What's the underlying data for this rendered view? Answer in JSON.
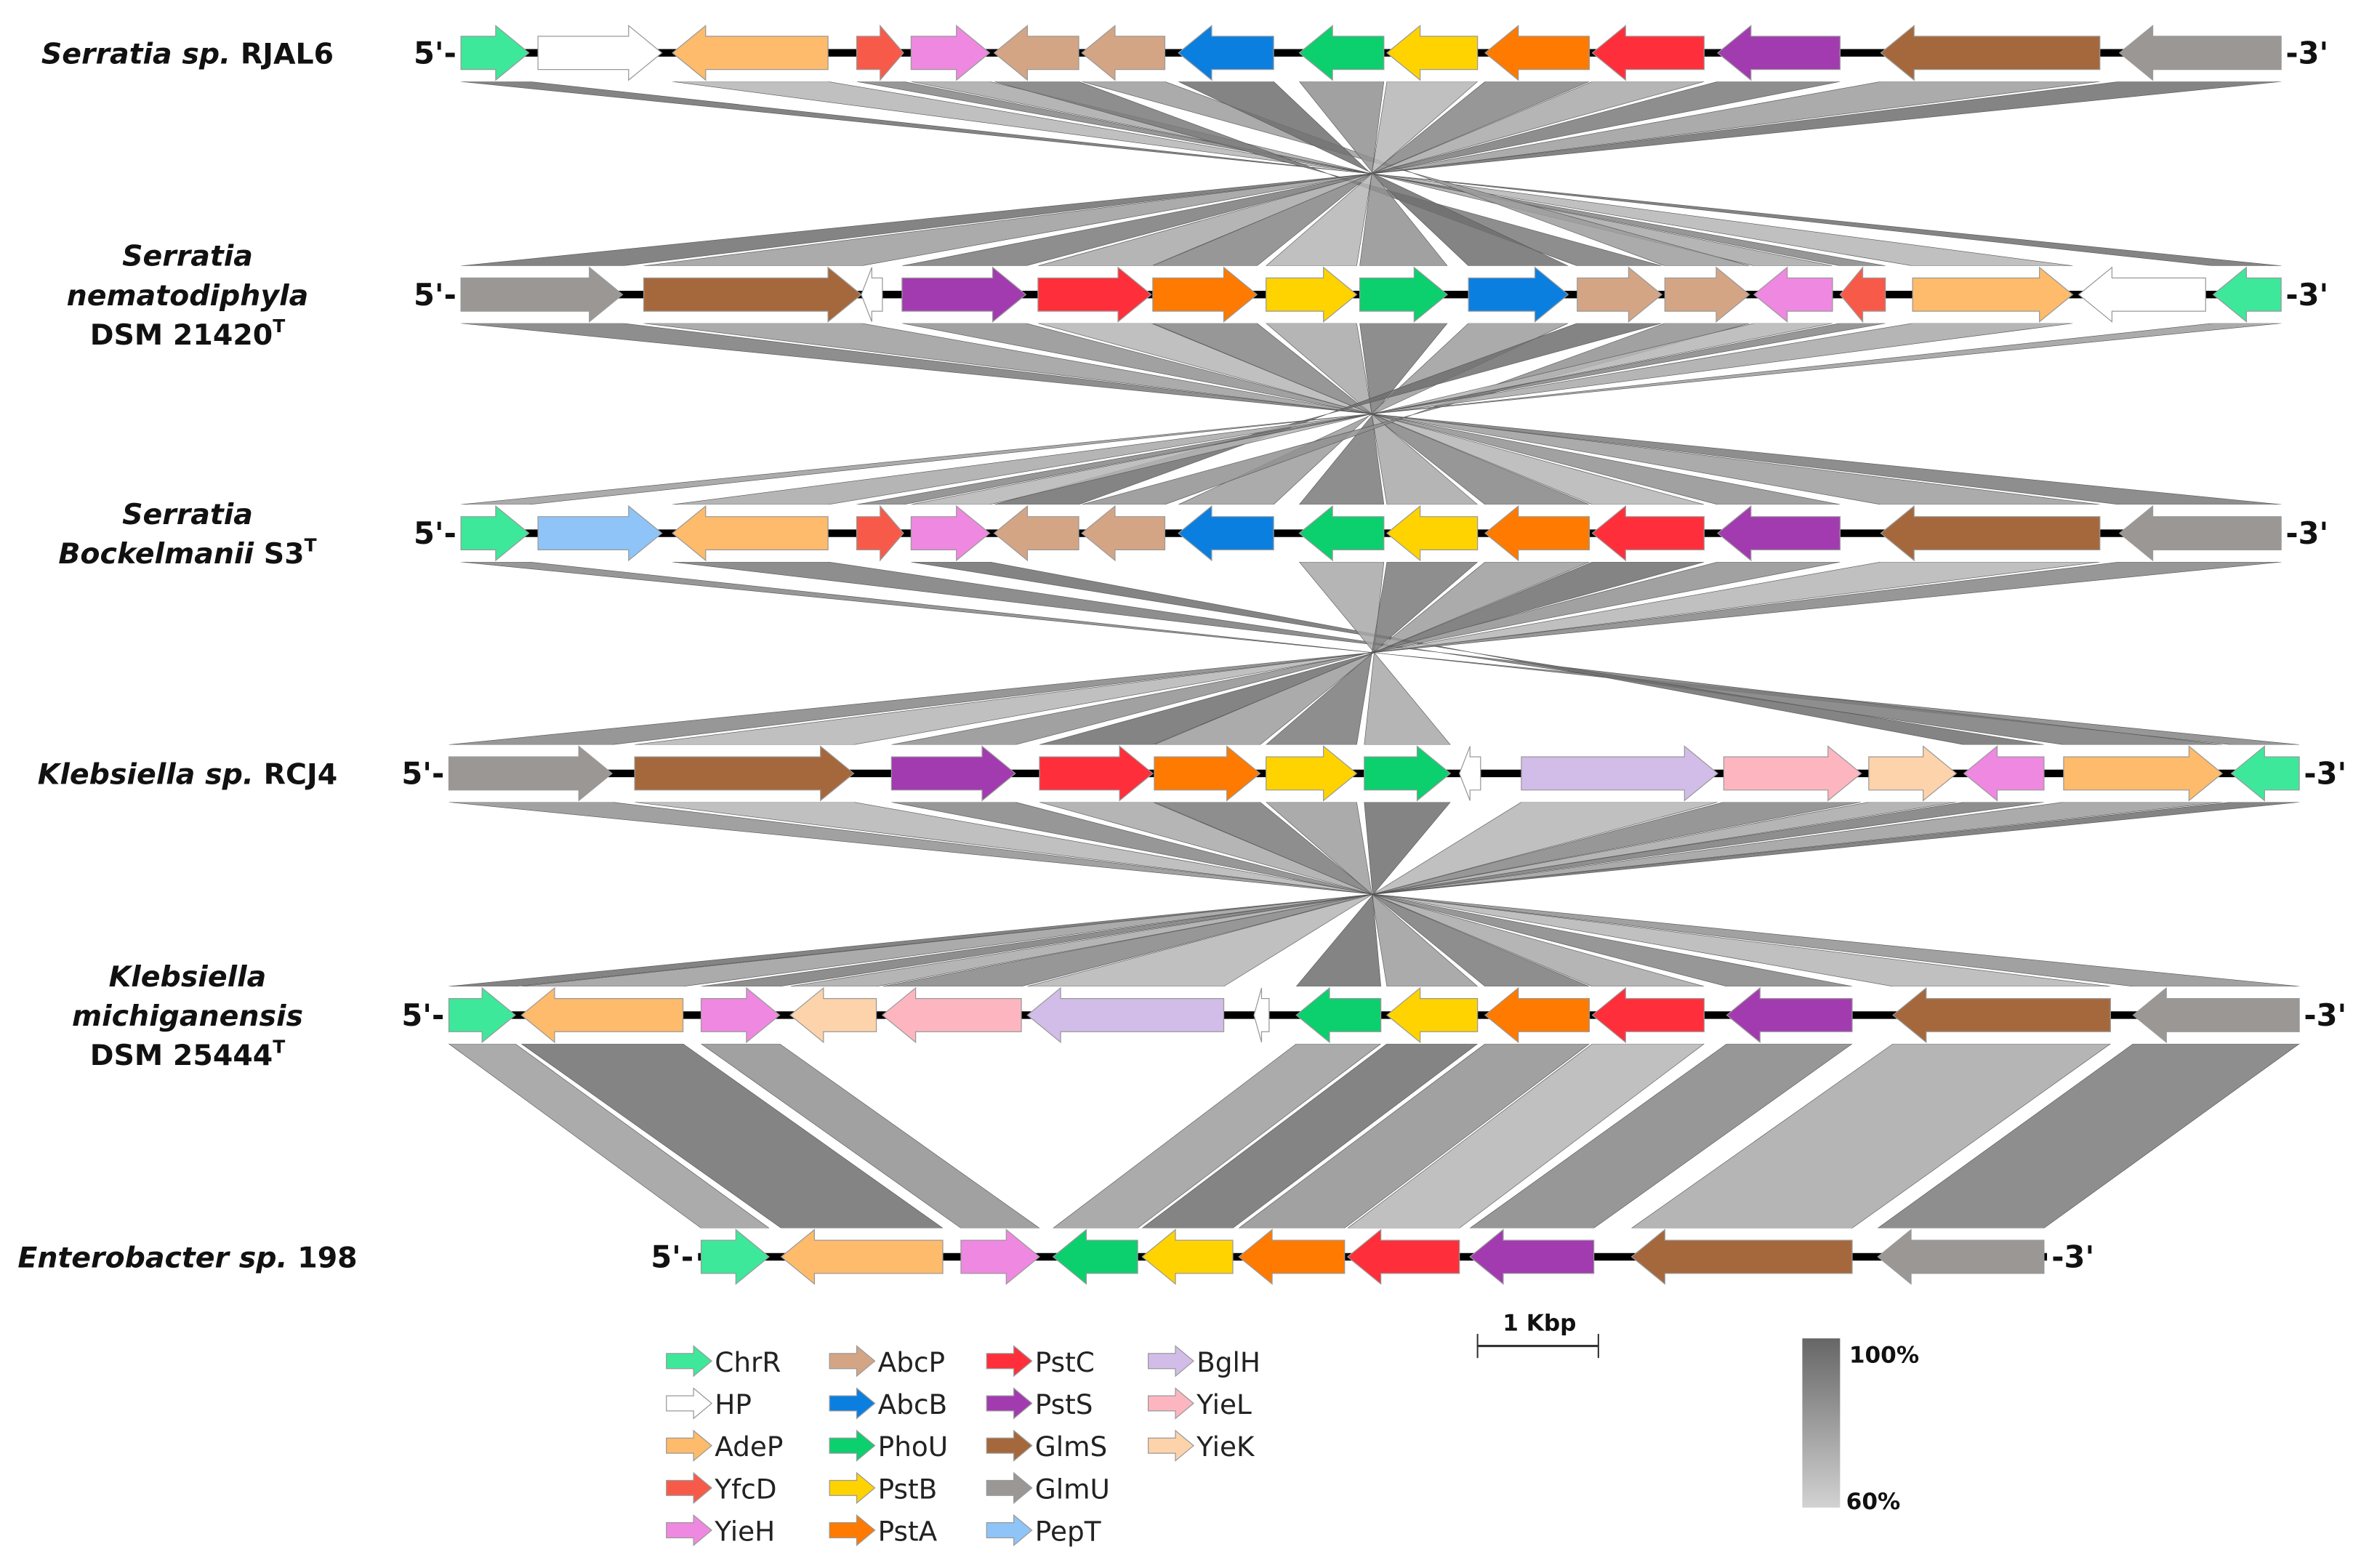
{
  "gene_colors": {
    "ChrR": "#3de89a",
    "HP": "#ffffff",
    "AdeP": "#fdbb6b",
    "YfcD": "#f85a4a",
    "YieH": "#ef88e0",
    "AbcP": "#d4a585",
    "AbcB": "#0a7fe0",
    "PhoU": "#0ccf6e",
    "PstB": "#fed300",
    "PstA": "#fe7a00",
    "PstC": "#fe2f3a",
    "PstS": "#a23bb0",
    "GlmS": "#a5683c",
    "GlmU": "#9a9794",
    "PepT": "#8ec4f7",
    "BglH": "#d1bde8",
    "YieL": "#fdb6c0",
    "YieK": "#fdd3ab"
  },
  "legend": [
    [
      "ChrR",
      "HP",
      "AdeP",
      "YfcD",
      "YieH"
    ],
    [
      "AbcP",
      "AbcB",
      "PhoU",
      "PstB",
      "PstA"
    ],
    [
      "PstC",
      "PstS",
      "GlmS",
      "GlmU",
      "PepT"
    ],
    [
      "BglH",
      "YieL",
      "YieK"
    ]
  ],
  "end_labels": {
    "five": "5'-",
    "three": "-3'"
  },
  "tracks": [
    {
      "label": [
        [
          {
            "t": "Serratia sp. ",
            "i": true
          },
          {
            "t": "RJAL6",
            "i": false
          }
        ]
      ],
      "genes": [
        [
          "ChrR",
          "+"
        ],
        [
          "HP",
          "+"
        ],
        [
          "AdeP",
          "-"
        ],
        [
          "YfcD",
          "+"
        ],
        [
          "YieH",
          "+"
        ],
        [
          "AbcP",
          "-"
        ],
        [
          "AbcP",
          "-"
        ],
        [
          "AbcB",
          "-"
        ],
        [
          "PhoU",
          "-"
        ],
        [
          "PstB",
          "-"
        ],
        [
          "PstA",
          "-"
        ],
        [
          "PstC",
          "-"
        ],
        [
          "PstS",
          "-"
        ],
        [
          "GlmS",
          "-"
        ],
        [
          "GlmU",
          "-"
        ]
      ]
    },
    {
      "label": [
        [
          {
            "t": "Serratia",
            "i": true
          }
        ],
        [
          {
            "t": "nematodiphyla",
            "i": true
          }
        ],
        [
          {
            "t": "DSM 21420",
            "i": false
          },
          {
            "t": "T",
            "i": false,
            "sup": true
          }
        ]
      ],
      "genes": [
        [
          "GlmU",
          "+"
        ],
        [
          "GlmS",
          "+"
        ],
        [
          "HP",
          "-"
        ],
        [
          "PstS",
          "+"
        ],
        [
          "PstC",
          "+"
        ],
        [
          "PstA",
          "+"
        ],
        [
          "PstB",
          "+"
        ],
        [
          "PhoU",
          "+"
        ],
        [
          "AbcB",
          "+"
        ],
        [
          "AbcP",
          "+"
        ],
        [
          "AbcP",
          "+"
        ],
        [
          "YieH",
          "-"
        ],
        [
          "YfcD",
          "-"
        ],
        [
          "AdeP",
          "+"
        ],
        [
          "HP",
          "-"
        ],
        [
          "ChrR",
          "-"
        ]
      ]
    },
    {
      "label": [
        [
          {
            "t": "Serratia",
            "i": true
          }
        ],
        [
          {
            "t": "Bockelmanii ",
            "i": true
          },
          {
            "t": "S3",
            "i": false
          },
          {
            "t": "T",
            "i": false,
            "sup": true
          }
        ]
      ],
      "genes": [
        [
          "ChrR",
          "+"
        ],
        [
          "PepT",
          "+"
        ],
        [
          "AdeP",
          "-"
        ],
        [
          "YfcD",
          "+"
        ],
        [
          "YieH",
          "+"
        ],
        [
          "AbcP",
          "-"
        ],
        [
          "AbcP",
          "-"
        ],
        [
          "AbcB",
          "-"
        ],
        [
          "PhoU",
          "-"
        ],
        [
          "PstB",
          "-"
        ],
        [
          "PstA",
          "-"
        ],
        [
          "PstC",
          "-"
        ],
        [
          "PstS",
          "-"
        ],
        [
          "GlmS",
          "-"
        ],
        [
          "GlmU",
          "-"
        ]
      ]
    },
    {
      "label": [
        [
          {
            "t": "Klebsiella sp. ",
            "i": true
          },
          {
            "t": "RCJ4",
            "i": false
          }
        ]
      ],
      "genes": [
        [
          "GlmU",
          "+"
        ],
        [
          "GlmS",
          "+"
        ],
        [
          "PstS",
          "+"
        ],
        [
          "PstC",
          "+"
        ],
        [
          "PstA",
          "+"
        ],
        [
          "PstB",
          "+"
        ],
        [
          "PhoU",
          "+"
        ],
        [
          "HP",
          "-"
        ],
        [
          "BglH",
          "+"
        ],
        [
          "YieL",
          "+"
        ],
        [
          "YieK",
          "+"
        ],
        [
          "YieH",
          "-"
        ],
        [
          "AdeP",
          "+"
        ],
        [
          "ChrR",
          "-"
        ]
      ]
    },
    {
      "label": [
        [
          {
            "t": "Klebsiella",
            "i": true
          }
        ],
        [
          {
            "t": "michiganensis",
            "i": true
          }
        ],
        [
          {
            "t": "DSM 25444",
            "i": false
          },
          {
            "t": "T",
            "i": false,
            "sup": true
          }
        ]
      ],
      "genes": [
        [
          "ChrR",
          "+"
        ],
        [
          "AdeP",
          "-"
        ],
        [
          "YieH",
          "+"
        ],
        [
          "YieK",
          "-"
        ],
        [
          "YieL",
          "-"
        ],
        [
          "BglH",
          "-"
        ],
        [
          "HP",
          "-"
        ],
        [
          "PhoU",
          "-"
        ],
        [
          "PstB",
          "-"
        ],
        [
          "PstA",
          "-"
        ],
        [
          "PstC",
          "-"
        ],
        [
          "PstS",
          "-"
        ],
        [
          "GlmS",
          "-"
        ],
        [
          "GlmU",
          "-"
        ]
      ]
    },
    {
      "label": [
        [
          {
            "t": "Enterobacter sp. ",
            "i": true
          },
          {
            "t": "198",
            "i": false
          }
        ]
      ],
      "genes": [
        [
          "ChrR",
          "+"
        ],
        [
          "AdeP",
          "-"
        ],
        [
          "YieH",
          "+"
        ],
        [
          "PhoU",
          "-"
        ],
        [
          "PstB",
          "-"
        ],
        [
          "PstA",
          "-"
        ],
        [
          "PstC",
          "-"
        ],
        [
          "PstS",
          "-"
        ],
        [
          "GlmS",
          "-"
        ],
        [
          "GlmU",
          "-"
        ]
      ]
    }
  ],
  "scale_bar": {
    "label": "1 Kbp"
  },
  "identity_scale": {
    "max_label": "100%",
    "min_label": "60%",
    "max_color": "#666666",
    "min_color": "#d2d2d2"
  }
}
